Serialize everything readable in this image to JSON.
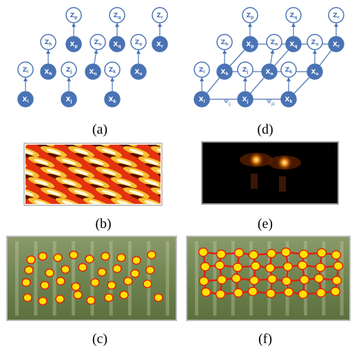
{
  "graph_a": {
    "nodes": [
      {
        "label": "Z",
        "sub": "p"
      },
      {
        "label": "Z",
        "sub": "q"
      },
      {
        "label": "Z",
        "sub": "r"
      },
      {
        "label": "Z",
        "sub": "h"
      },
      {
        "label": "X",
        "sub": "p"
      },
      {
        "label": "Z",
        "sub": "n"
      },
      {
        "label": "X",
        "sub": "q"
      },
      {
        "label": "Z",
        "sub": "o"
      },
      {
        "label": "X",
        "sub": "r"
      },
      {
        "label": "Z",
        "sub": "i"
      },
      {
        "label": "X",
        "sub": "h"
      },
      {
        "label": "Z",
        "sub": "j"
      },
      {
        "label": "X",
        "sub": "n"
      },
      {
        "label": "Z",
        "sub": "k"
      },
      {
        "label": "X",
        "sub": "o"
      },
      {
        "label": "X",
        "sub": "i"
      },
      {
        "label": "X",
        "sub": "j"
      },
      {
        "label": "X",
        "sub": "k"
      }
    ]
  },
  "graph_d": {
    "nodes": [
      {
        "label": "Z",
        "sub": "p"
      },
      {
        "label": "Z",
        "sub": "q"
      },
      {
        "label": "Z",
        "sub": "r"
      },
      {
        "label": "Z",
        "sub": "h"
      },
      {
        "label": "X",
        "sub": "p"
      },
      {
        "label": "Z",
        "sub": "n"
      },
      {
        "label": "X",
        "sub": "q"
      },
      {
        "label": "Z",
        "sub": "o"
      },
      {
        "label": "X",
        "sub": "r"
      },
      {
        "label": "Z",
        "sub": "i"
      },
      {
        "label": "X",
        "sub": "h"
      },
      {
        "label": "Z",
        "sub": "j"
      },
      {
        "label": "X",
        "sub": "n"
      },
      {
        "label": "Z",
        "sub": "k"
      },
      {
        "label": "X",
        "sub": "o"
      },
      {
        "label": "X",
        "sub": "i"
      },
      {
        "label": "X",
        "sub": "j"
      },
      {
        "label": "X",
        "sub": "k"
      }
    ],
    "potentials": [
      {
        "label": "Ψ",
        "sub": "ij"
      },
      {
        "label": "Ψ",
        "sub": "jk"
      }
    ]
  },
  "captions": {
    "a": "(a)",
    "b": "(b)",
    "c": "(c)",
    "d": "(d)",
    "e": "(e)",
    "f": "(f)"
  }
}
